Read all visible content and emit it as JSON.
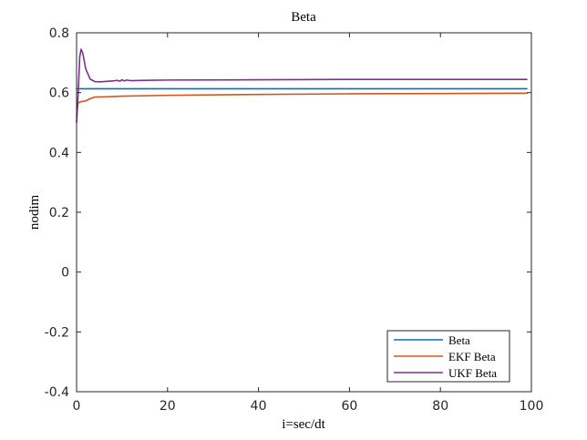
{
  "chart_data": {
    "type": "line",
    "title": "Beta",
    "xlabel": "i=sec/dt",
    "ylabel": "nodim",
    "xlim": [
      0,
      100
    ],
    "ylim": [
      -0.4,
      0.8
    ],
    "x_ticks": [
      0,
      20,
      40,
      60,
      80,
      100
    ],
    "y_ticks": [
      -0.4,
      -0.2,
      0,
      0.2,
      0.4,
      0.6,
      0.8
    ],
    "x_tick_labels": [
      "0",
      "20",
      "40",
      "60",
      "80",
      "100"
    ],
    "y_tick_labels": [
      "-0.4",
      "-0.2",
      "0",
      "0.2",
      "0.4",
      "0.6",
      "0.8"
    ],
    "grid": false,
    "legend_position": "bottom-right",
    "series": [
      {
        "name": "Beta",
        "color": "#0072BD",
        "points": [
          [
            0,
            0.613
          ],
          [
            99,
            0.613
          ]
        ]
      },
      {
        "name": "EKF Beta",
        "color": "#D95319",
        "points": [
          [
            0,
            0.52
          ],
          [
            0.3,
            0.565
          ],
          [
            1,
            0.57
          ],
          [
            2,
            0.572
          ],
          [
            3,
            0.58
          ],
          [
            4,
            0.585
          ],
          [
            6,
            0.586
          ],
          [
            10,
            0.588
          ],
          [
            20,
            0.591
          ],
          [
            40,
            0.594
          ],
          [
            60,
            0.596
          ],
          [
            80,
            0.597
          ],
          [
            99,
            0.598
          ]
        ]
      },
      {
        "name": "UKF Beta",
        "color": "#7E2F8E",
        "points": [
          [
            0,
            0.5
          ],
          [
            0.3,
            0.58
          ],
          [
            0.7,
            0.72
          ],
          [
            1,
            0.745
          ],
          [
            1.4,
            0.73
          ],
          [
            2,
            0.68
          ],
          [
            3,
            0.645
          ],
          [
            4,
            0.637
          ],
          [
            5,
            0.636
          ],
          [
            6,
            0.637
          ],
          [
            7,
            0.638
          ],
          [
            8,
            0.639
          ],
          [
            9,
            0.641
          ],
          [
            9.5,
            0.638
          ],
          [
            10,
            0.643
          ],
          [
            10.5,
            0.639
          ],
          [
            11,
            0.642
          ],
          [
            12,
            0.64
          ],
          [
            15,
            0.641
          ],
          [
            20,
            0.642
          ],
          [
            40,
            0.643
          ],
          [
            60,
            0.644
          ],
          [
            80,
            0.644
          ],
          [
            99,
            0.644
          ]
        ]
      }
    ]
  }
}
